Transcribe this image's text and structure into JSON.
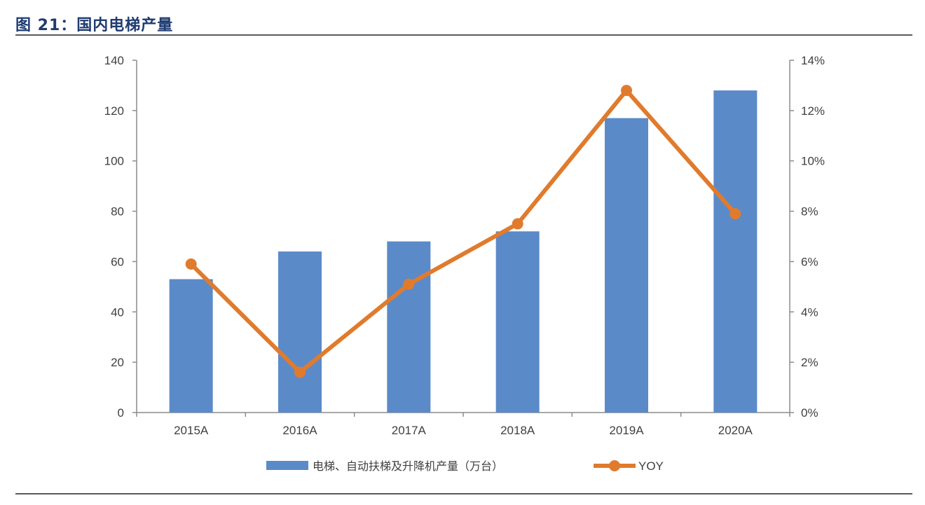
{
  "figure": {
    "title": "图 21：国内电梯产量"
  },
  "chart_data": {
    "type": "bar",
    "categories": [
      "2015A",
      "2016A",
      "2017A",
      "2018A",
      "2019A",
      "2020A"
    ],
    "series": [
      {
        "name": "电梯、自动扶梯及升降机产量（万台）",
        "type": "bar",
        "axis": "left",
        "values": [
          53,
          64,
          68,
          72,
          117,
          128
        ],
        "color": "#5b8ac9"
      },
      {
        "name": "YOY",
        "type": "line",
        "axis": "right",
        "values": [
          5.9,
          1.6,
          5.1,
          7.5,
          12.8,
          7.9
        ],
        "color": "#e07b2d"
      }
    ],
    "left_axis": {
      "ylim": [
        0,
        140
      ],
      "ticks": [
        "0",
        "20",
        "40",
        "60",
        "80",
        "100",
        "120",
        "140"
      ]
    },
    "right_axis": {
      "ylim": [
        0,
        14
      ],
      "ticks": [
        "0%",
        "2%",
        "4%",
        "6%",
        "8%",
        "10%",
        "12%",
        "14%"
      ]
    },
    "grid": false,
    "legend_position": "bottom"
  }
}
